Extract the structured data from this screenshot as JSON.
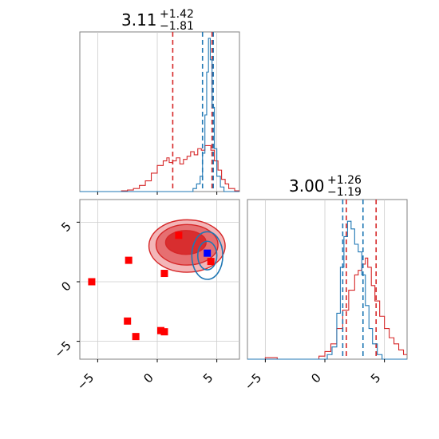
{
  "colors": {
    "red": "#d62728",
    "blue": "#1f77b4",
    "red_fill_light": "#f2aeb0",
    "red_fill_mid": "#e46769",
    "red_fill_dark": "#d62728",
    "marker_blue": "#0000ff",
    "marker_red": "#ff0000",
    "grid": "#cccccc",
    "axis": "#808080"
  },
  "titles": {
    "top": {
      "main": "3.11",
      "sup": "+1.42",
      "sub": "−1.81"
    },
    "right": {
      "main": "3.00",
      "sup": "+1.26",
      "sub": "−1.19"
    }
  },
  "chart_data": [
    {
      "type": "histogram",
      "panel": "top-left marginal (parameter 1)",
      "xlim": [
        -6.5,
        6.9
      ],
      "ticks": [
        -5,
        0,
        5
      ],
      "tick_labels": [],
      "series": [
        {
          "color": "#d62728",
          "step_values": [
            [
              -6.5,
              0.0
            ],
            [
              -3.0,
              0.005
            ],
            [
              -2.5,
              0.01
            ],
            [
              -2.0,
              0.02
            ],
            [
              -1.5,
              0.04
            ],
            [
              -1.0,
              0.07
            ],
            [
              -0.5,
              0.12
            ],
            [
              0.0,
              0.17
            ],
            [
              0.5,
              0.2
            ],
            [
              0.8,
              0.22
            ],
            [
              1.0,
              0.19
            ],
            [
              1.3,
              0.2
            ],
            [
              1.6,
              0.22
            ],
            [
              1.9,
              0.18
            ],
            [
              2.2,
              0.21
            ],
            [
              2.5,
              0.23
            ],
            [
              2.8,
              0.26
            ],
            [
              3.1,
              0.24
            ],
            [
              3.4,
              0.28
            ],
            [
              3.7,
              0.27
            ],
            [
              4.0,
              0.3
            ],
            [
              4.2,
              0.3
            ],
            [
              4.5,
              0.27
            ],
            [
              4.8,
              0.2
            ],
            [
              5.1,
              0.14
            ],
            [
              5.4,
              0.08
            ],
            [
              5.7,
              0.05
            ],
            [
              6.0,
              0.02
            ],
            [
              6.5,
              0.005
            ]
          ],
          "quantiles": [
            1.3,
            4.6
          ]
        },
        {
          "color": "#1f77b4",
          "step_values": [
            [
              -6.5,
              0.0
            ],
            [
              2.6,
              0.0
            ],
            [
              3.0,
              0.02
            ],
            [
              3.3,
              0.05
            ],
            [
              3.6,
              0.1
            ],
            [
              3.8,
              0.25
            ],
            [
              4.0,
              0.5
            ],
            [
              4.15,
              0.78
            ],
            [
              4.3,
              1.0
            ],
            [
              4.45,
              0.86
            ],
            [
              4.6,
              0.55
            ],
            [
              4.8,
              0.28
            ],
            [
              5.0,
              0.1
            ],
            [
              5.3,
              0.03
            ],
            [
              5.6,
              0.0
            ]
          ],
          "quantiles": [
            3.8,
            4.7
          ]
        }
      ]
    },
    {
      "type": "contour-scatter",
      "panel": "bottom-left 2D (parameter 1 vs parameter 2)",
      "xlim": [
        -6.5,
        6.9
      ],
      "ylim": [
        -6.5,
        6.9
      ],
      "xticks": [
        -5,
        0,
        5
      ],
      "xtick_labels": [
        "−5",
        "0",
        "5"
      ],
      "yticks": [
        -5,
        0,
        5
      ],
      "ytick_labels": [
        "−5",
        "0",
        "5"
      ],
      "red_markers": [
        [
          1.8,
          3.9
        ],
        [
          -2.4,
          1.8
        ],
        [
          -5.5,
          0.0
        ],
        [
          0.6,
          0.7
        ],
        [
          4.5,
          1.7
        ],
        [
          -2.5,
          -3.3
        ],
        [
          -1.8,
          -4.6
        ],
        [
          0.3,
          -4.1
        ],
        [
          0.6,
          -4.2
        ]
      ],
      "blue_marker": [
        4.2,
        2.4
      ],
      "red_contours": [
        {
          "level": "outer",
          "center": [
            2.5,
            3.0
          ],
          "rx": 3.2,
          "ry": 2.2
        },
        {
          "level": "middle",
          "center": [
            2.5,
            3.1
          ],
          "rx": 2.6,
          "ry": 1.7
        },
        {
          "level": "inner",
          "center": [
            2.4,
            3.3
          ],
          "rx": 1.7,
          "ry": 1.0
        }
      ],
      "blue_contours": [
        {
          "level": "outer",
          "center": [
            4.2,
            2.2
          ],
          "rx": 1.3,
          "ry": 2.0
        },
        {
          "level": "inner",
          "center": [
            4.2,
            2.2
          ],
          "rx": 0.8,
          "ry": 1.2
        }
      ]
    },
    {
      "type": "histogram",
      "panel": "bottom-right marginal (parameter 2)",
      "xlim": [
        -6.5,
        6.9
      ],
      "xticks": [
        -5,
        0,
        5
      ],
      "xtick_labels": [
        "−5",
        "0",
        "5"
      ],
      "series": [
        {
          "color": "#d62728",
          "step_values": [
            [
              -6.5,
              0.0
            ],
            [
              -5.0,
              0.01
            ],
            [
              -4.0,
              0.0
            ],
            [
              -1.0,
              0.0
            ],
            [
              -0.5,
              0.02
            ],
            [
              0.0,
              0.05
            ],
            [
              0.5,
              0.1
            ],
            [
              1.0,
              0.2
            ],
            [
              1.5,
              0.32
            ],
            [
              2.0,
              0.45
            ],
            [
              2.5,
              0.55
            ],
            [
              2.8,
              0.58
            ],
            [
              3.1,
              0.62
            ],
            [
              3.4,
              0.66
            ],
            [
              3.6,
              0.6
            ],
            [
              3.9,
              0.48
            ],
            [
              4.2,
              0.38
            ],
            [
              4.6,
              0.28
            ],
            [
              5.0,
              0.2
            ],
            [
              5.4,
              0.14
            ],
            [
              5.8,
              0.1
            ],
            [
              6.2,
              0.06
            ],
            [
              6.6,
              0.03
            ]
          ],
          "quantiles": [
            1.8,
            4.3
          ]
        },
        {
          "color": "#1f77b4",
          "step_values": [
            [
              -6.5,
              0.0
            ],
            [
              -0.2,
              0.0
            ],
            [
              0.2,
              0.03
            ],
            [
              0.6,
              0.08
            ],
            [
              1.0,
              0.3
            ],
            [
              1.3,
              0.6
            ],
            [
              1.6,
              0.8
            ],
            [
              1.9,
              0.9
            ],
            [
              2.2,
              0.85
            ],
            [
              2.5,
              0.75
            ],
            [
              2.8,
              0.7
            ],
            [
              3.1,
              0.55
            ],
            [
              3.4,
              0.35
            ],
            [
              3.7,
              0.2
            ],
            [
              4.0,
              0.1
            ],
            [
              4.4,
              0.03
            ],
            [
              4.8,
              0.0
            ]
          ],
          "quantiles": [
            1.5,
            3.2
          ]
        }
      ]
    }
  ]
}
